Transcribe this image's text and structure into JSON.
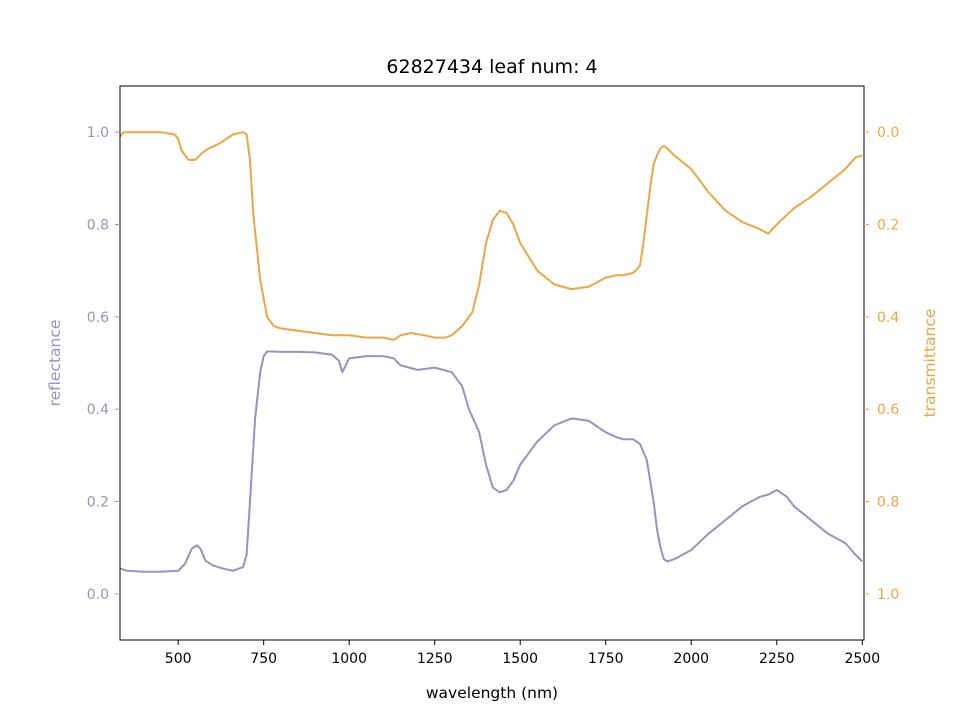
{
  "chart_data": {
    "type": "line",
    "title": "62827434 leaf num: 4",
    "xlabel": "wavelength (nm)",
    "ylabel_left": "reflectance",
    "ylabel_right": "transmittance",
    "xlim": [
      330,
      2505
    ],
    "ylim_left": [
      -0.1,
      1.1
    ],
    "ylim_right": [
      1.1,
      -0.1
    ],
    "right_axis_inverted": true,
    "grid": false,
    "colors": {
      "reflectance": "#9990c4",
      "transmittance": "#eea543",
      "frame": "#000000"
    },
    "x_ticks": [
      {
        "value": 500,
        "label": "500"
      },
      {
        "value": 750,
        "label": "750"
      },
      {
        "value": 1000,
        "label": "1000"
      },
      {
        "value": 1250,
        "label": "1250"
      },
      {
        "value": 1500,
        "label": "1500"
      },
      {
        "value": 1750,
        "label": "1750"
      },
      {
        "value": 2000,
        "label": "2000"
      },
      {
        "value": 2250,
        "label": "2250"
      },
      {
        "value": 2500,
        "label": "2500"
      }
    ],
    "y_ticks_left": [
      {
        "value": 0.0,
        "label": "0.0"
      },
      {
        "value": 0.2,
        "label": "0.2"
      },
      {
        "value": 0.4,
        "label": "0.4"
      },
      {
        "value": 0.6,
        "label": "0.6"
      },
      {
        "value": 0.8,
        "label": "0.8"
      },
      {
        "value": 1.0,
        "label": "1.0"
      }
    ],
    "y_ticks_right": [
      {
        "value": 0.0,
        "label": "0.0"
      },
      {
        "value": 0.2,
        "label": "0.2"
      },
      {
        "value": 0.4,
        "label": "0.4"
      },
      {
        "value": 0.6,
        "label": "0.6"
      },
      {
        "value": 0.8,
        "label": "0.8"
      },
      {
        "value": 1.0,
        "label": "1.0"
      }
    ],
    "series": [
      {
        "key": "reflectance",
        "axis": "left",
        "x": [
          330,
          350,
          400,
          450,
          500,
          520,
          540,
          555,
          565,
          580,
          600,
          630,
          660,
          690,
          700,
          710,
          725,
          740,
          750,
          760,
          780,
          800,
          850,
          900,
          950,
          970,
          980,
          1000,
          1050,
          1100,
          1130,
          1150,
          1200,
          1250,
          1300,
          1330,
          1350,
          1380,
          1400,
          1420,
          1440,
          1460,
          1480,
          1500,
          1550,
          1600,
          1650,
          1700,
          1750,
          1780,
          1800,
          1830,
          1850,
          1870,
          1890,
          1900,
          1910,
          1920,
          1930,
          1950,
          2000,
          2050,
          2100,
          2150,
          2200,
          2225,
          2250,
          2280,
          2300,
          2350,
          2400,
          2450,
          2480,
          2500
        ],
        "values": [
          0.055,
          0.05,
          0.048,
          0.048,
          0.05,
          0.065,
          0.098,
          0.105,
          0.098,
          0.072,
          0.062,
          0.055,
          0.05,
          0.058,
          0.085,
          0.2,
          0.38,
          0.48,
          0.515,
          0.525,
          0.525,
          0.524,
          0.524,
          0.523,
          0.518,
          0.505,
          0.48,
          0.51,
          0.515,
          0.515,
          0.51,
          0.495,
          0.485,
          0.49,
          0.48,
          0.45,
          0.4,
          0.35,
          0.28,
          0.23,
          0.22,
          0.225,
          0.245,
          0.28,
          0.33,
          0.365,
          0.38,
          0.375,
          0.35,
          0.34,
          0.335,
          0.335,
          0.325,
          0.29,
          0.2,
          0.14,
          0.1,
          0.075,
          0.07,
          0.075,
          0.095,
          0.13,
          0.16,
          0.19,
          0.21,
          0.215,
          0.225,
          0.21,
          0.19,
          0.16,
          0.13,
          0.11,
          0.085,
          0.07
        ]
      },
      {
        "key": "transmittance",
        "axis": "right",
        "x": [
          330,
          340,
          360,
          400,
          450,
          490,
          500,
          510,
          530,
          550,
          570,
          590,
          620,
          660,
          690,
          700,
          710,
          720,
          740,
          760,
          780,
          800,
          850,
          900,
          950,
          970,
          980,
          1000,
          1050,
          1100,
          1130,
          1150,
          1180,
          1220,
          1250,
          1280,
          1300,
          1330,
          1360,
          1380,
          1400,
          1420,
          1440,
          1460,
          1480,
          1500,
          1550,
          1600,
          1650,
          1700,
          1750,
          1780,
          1800,
          1830,
          1850,
          1860,
          1870,
          1880,
          1890,
          1900,
          1910,
          1920,
          1930,
          1950,
          2000,
          2050,
          2100,
          2150,
          2200,
          2225,
          2250,
          2300,
          2350,
          2400,
          2450,
          2480,
          2500
        ],
        "values": [
          0.01,
          0.0,
          0.0,
          0.0,
          0.0,
          0.005,
          0.015,
          0.04,
          0.06,
          0.06,
          0.045,
          0.035,
          0.025,
          0.005,
          0.0,
          0.005,
          0.06,
          0.18,
          0.32,
          0.4,
          0.42,
          0.425,
          0.43,
          0.435,
          0.44,
          0.44,
          0.44,
          0.44,
          0.445,
          0.445,
          0.45,
          0.44,
          0.435,
          0.44,
          0.445,
          0.445,
          0.44,
          0.42,
          0.39,
          0.33,
          0.24,
          0.19,
          0.17,
          0.175,
          0.2,
          0.24,
          0.3,
          0.33,
          0.34,
          0.335,
          0.315,
          0.31,
          0.31,
          0.305,
          0.29,
          0.24,
          0.18,
          0.12,
          0.07,
          0.05,
          0.035,
          0.03,
          0.035,
          0.05,
          0.08,
          0.13,
          0.17,
          0.195,
          0.21,
          0.22,
          0.2,
          0.165,
          0.14,
          0.11,
          0.08,
          0.055,
          0.05
        ]
      }
    ]
  }
}
